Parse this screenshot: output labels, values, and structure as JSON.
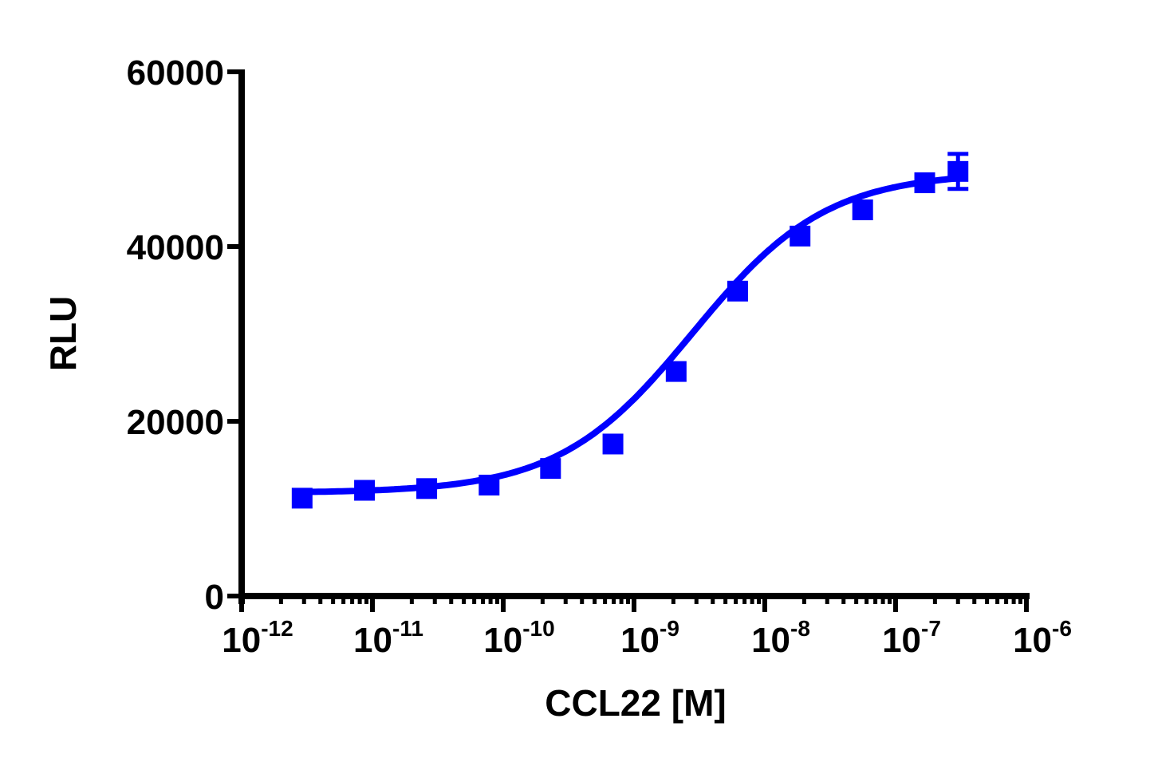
{
  "chart_data": {
    "type": "scatter",
    "title": "",
    "xlabel": "CCL22 [M]",
    "ylabel": "RLU",
    "xscale": "log",
    "xlim": [
      1e-12,
      1e-06
    ],
    "ylim": [
      0,
      60000
    ],
    "y_ticks": [
      0,
      20000,
      40000,
      60000
    ],
    "y_tick_labels": [
      "0",
      "20000",
      "40000",
      "60000"
    ],
    "x_ticks": [
      -12,
      -11,
      -10,
      -9,
      -8,
      -7,
      -6
    ],
    "x_tick_labels": [
      {
        "base": "10",
        "exp": "-12"
      },
      {
        "base": "10",
        "exp": "-11"
      },
      {
        "base": "10",
        "exp": "-10"
      },
      {
        "base": "10",
        "exp": "-9"
      },
      {
        "base": "10",
        "exp": "-8"
      },
      {
        "base": "10",
        "exp": "-7"
      },
      {
        "base": "10",
        "exp": "-6"
      }
    ],
    "grid": false,
    "legend": null,
    "series": [
      {
        "name": "CCL22",
        "color": "#0000ff",
        "marker": "square",
        "fit": "sigmoidal dose-response (4PL)",
        "x": [
          2.9e-12,
          8.7e-12,
          2.6e-11,
          7.8e-11,
          2.3e-10,
          6.9e-10,
          2.1e-09,
          6.2e-09,
          1.86e-08,
          5.6e-08,
          1.67e-07,
          3e-07
        ],
        "values": [
          11200,
          12100,
          12300,
          12700,
          14600,
          17400,
          25700,
          34900,
          41200,
          44200,
          47300,
          48600
        ],
        "error": [
          0,
          0,
          0,
          0,
          0,
          0,
          0,
          0,
          0,
          0,
          0,
          2000
        ]
      }
    ],
    "fit_params": {
      "bottom": 11800,
      "top": 48500,
      "log_ec50": -8.55,
      "hill": 0.85
    }
  }
}
